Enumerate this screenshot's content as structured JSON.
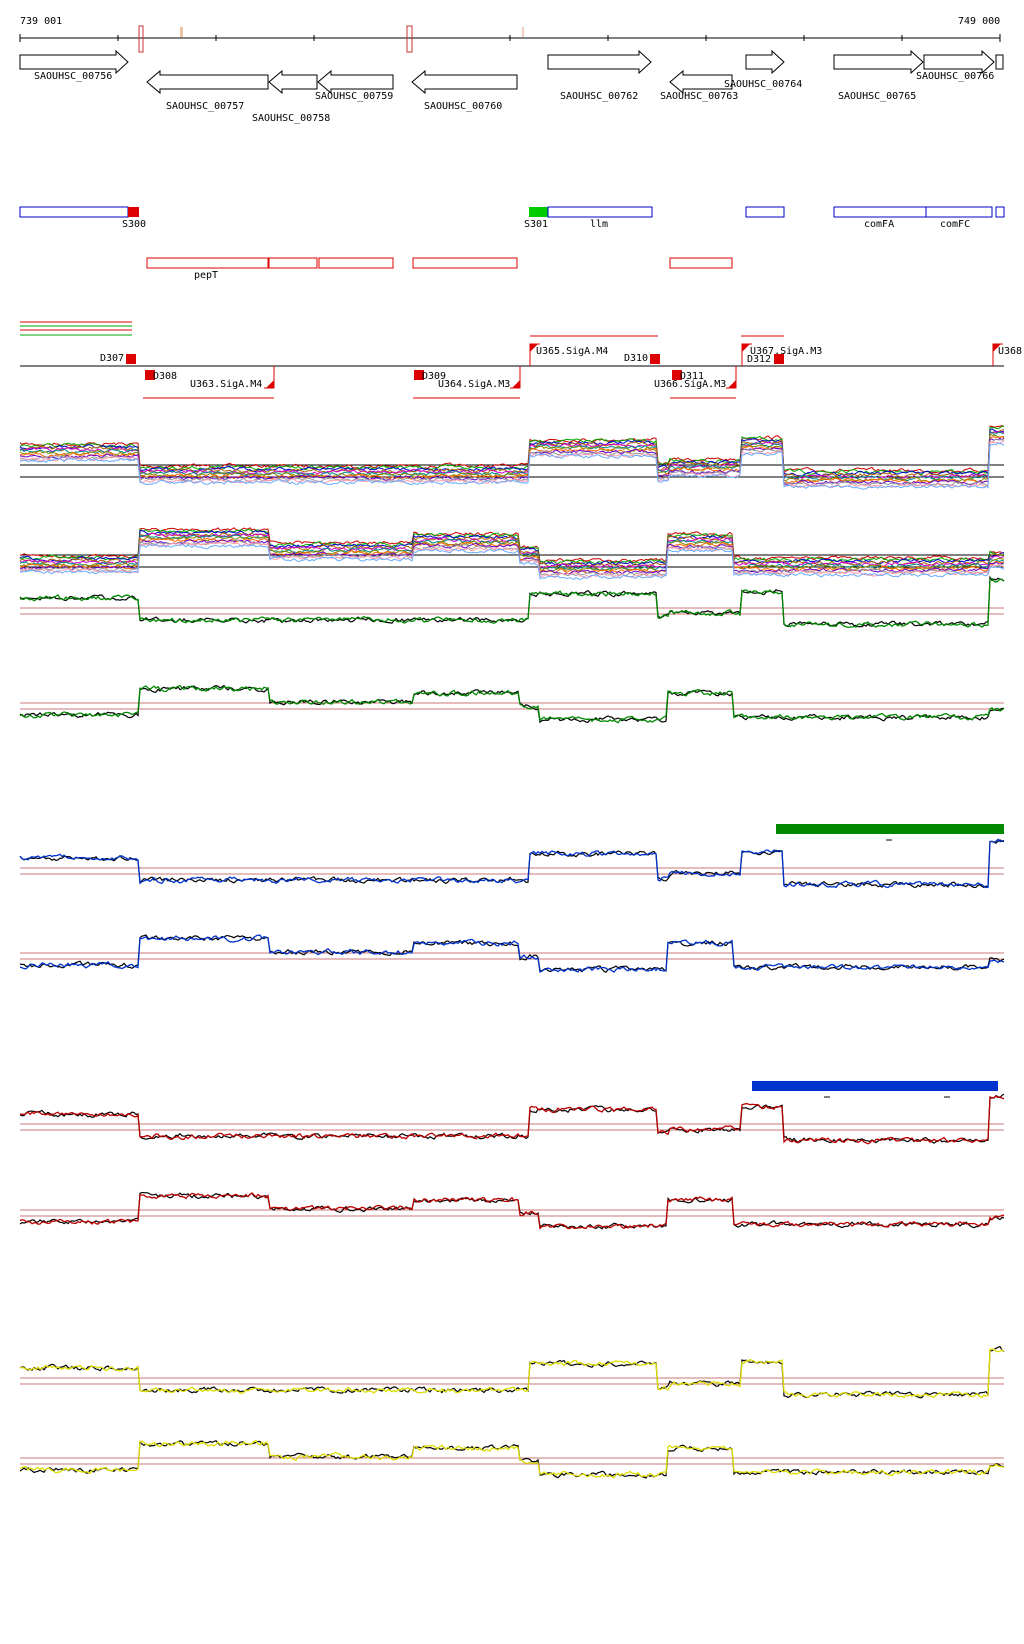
{
  "coords": {
    "start": "739 001",
    "end": "749 000"
  },
  "genes": [
    {
      "id": "SAOUHSC_00756",
      "strand": "+"
    },
    {
      "id": "SAOUHSC_00757",
      "strand": "-"
    },
    {
      "id": "SAOUHSC_00758",
      "strand": "-"
    },
    {
      "id": "SAOUHSC_00759",
      "strand": "-"
    },
    {
      "id": "SAOUHSC_00760",
      "strand": "-"
    },
    {
      "id": "SAOUHSC_00762",
      "strand": "+"
    },
    {
      "id": "SAOUHSC_00763",
      "strand": "-"
    },
    {
      "id": "SAOUHSC_00764",
      "strand": "+"
    },
    {
      "id": "SAOUHSC_00765",
      "strand": "+"
    },
    {
      "id": "SAOUHSC_00766",
      "strand": "+"
    }
  ],
  "forward_segments": [
    "S300",
    "S301",
    "llm",
    "comFA",
    "comFC"
  ],
  "reverse_segments": [
    "pepT"
  ],
  "features": [
    "D307",
    "D308",
    "U363.SigA.M4",
    "D309",
    "U364.SigA.M3",
    "U365.SigA.M4",
    "D310",
    "D311",
    "U366.SigA.M3",
    "U367.SigA.M3",
    "D312",
    "U368"
  ],
  "colors": {
    "gene_outline": "#000000",
    "forward_box": "#0000cc",
    "reverse_box": "#dd0000",
    "s301_fill": "#00cc00",
    "green_track": "#008800",
    "blue_track": "#0033cc",
    "red_track": "#bb0000",
    "yellow_track": "#dddd00",
    "baseline": "#cc7777"
  }
}
